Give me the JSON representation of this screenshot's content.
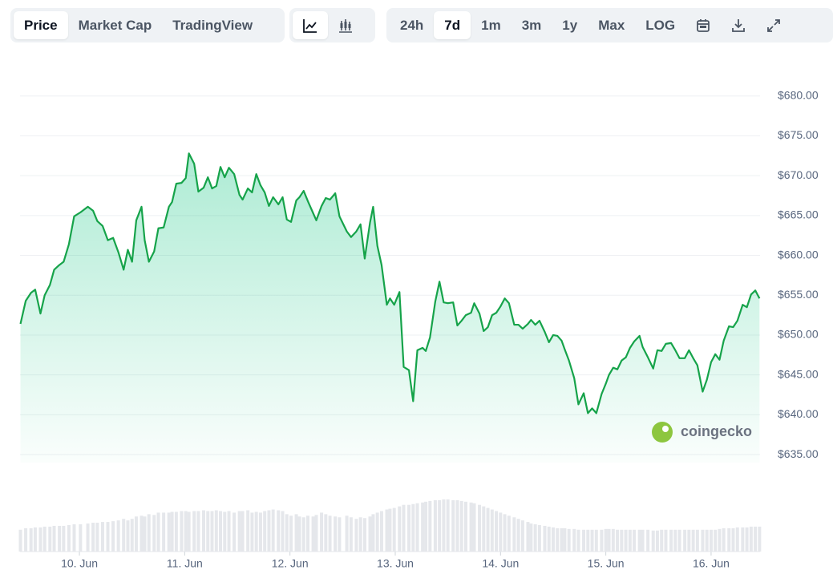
{
  "toolbar": {
    "tabs": [
      "Price",
      "Market Cap",
      "TradingView"
    ],
    "ranges": [
      "24h",
      "7d",
      "1m",
      "3m",
      "1y",
      "Max",
      "LOG"
    ]
  },
  "watermark": "coingecko",
  "chart_data": {
    "type": "line",
    "x": [
      9.44,
      9.49,
      9.54,
      9.58,
      9.63,
      9.67,
      9.72,
      9.76,
      9.81,
      9.85,
      9.9,
      9.95,
      10.01,
      10.08,
      10.13,
      10.17,
      10.22,
      10.27,
      10.32,
      10.37,
      10.42,
      10.46,
      10.5,
      10.54,
      10.59,
      10.62,
      10.66,
      10.71,
      10.75,
      10.8,
      10.85,
      10.88,
      10.92,
      10.97,
      11.01,
      11.04,
      11.09,
      11.13,
      11.18,
      11.22,
      11.26,
      11.3,
      11.34,
      11.38,
      11.42,
      11.47,
      11.52,
      11.55,
      11.6,
      11.64,
      11.68,
      11.72,
      11.76,
      11.8,
      11.84,
      11.89,
      11.93,
      11.97,
      12.01,
      12.06,
      12.09,
      12.13,
      12.17,
      12.22,
      12.25,
      12.3,
      12.34,
      12.38,
      12.43,
      12.47,
      12.54,
      12.58,
      12.63,
      12.67,
      12.71,
      12.76,
      12.79,
      12.83,
      12.87,
      12.92,
      12.95,
      12.99,
      13.04,
      13.08,
      13.13,
      13.17,
      13.21,
      13.26,
      13.29,
      13.33,
      13.38,
      13.42,
      13.46,
      13.5,
      13.55,
      13.59,
      13.63,
      13.67,
      13.72,
      13.75,
      13.8,
      13.84,
      13.88,
      13.92,
      13.96,
      14.0,
      14.04,
      14.08,
      14.13,
      14.17,
      14.21,
      14.26,
      14.29,
      14.33,
      14.37,
      14.42,
      14.46,
      14.5,
      14.54,
      14.58,
      14.61,
      14.65,
      14.7,
      14.74,
      14.79,
      14.83,
      14.87,
      14.91,
      14.96,
      15.0,
      15.03,
      15.07,
      15.11,
      15.15,
      15.19,
      15.23,
      15.27,
      15.32,
      15.35,
      15.4,
      15.45,
      15.49,
      15.53,
      15.57,
      15.62,
      15.66,
      15.7,
      15.75,
      15.79,
      15.83,
      15.87,
      15.92,
      15.96,
      16.0,
      16.04,
      16.08,
      16.12,
      16.17,
      16.21,
      16.25,
      16.3,
      16.34,
      16.38,
      16.42,
      16.46
    ],
    "series": [
      {
        "color": "#16a34a",
        "values": [
          651.4,
          654.3,
          655.3,
          655.7,
          652.7,
          655.0,
          656.3,
          658.2,
          658.8,
          659.2,
          661.4,
          664.9,
          665.4,
          666.1,
          665.6,
          664.3,
          663.7,
          661.9,
          662.2,
          660.4,
          658.2,
          660.7,
          659.2,
          664.4,
          666.1,
          661.9,
          659.2,
          660.5,
          663.4,
          663.5,
          666.1,
          666.7,
          669.0,
          669.1,
          669.7,
          672.8,
          671.5,
          668.0,
          668.5,
          669.8,
          668.4,
          668.7,
          671.1,
          669.8,
          671.0,
          670.2,
          667.6,
          667.0,
          668.4,
          667.9,
          670.2,
          668.8,
          667.9,
          666.2,
          667.3,
          666.4,
          667.3,
          664.5,
          664.2,
          666.9,
          667.3,
          668.1,
          666.8,
          665.3,
          664.4,
          666.2,
          667.2,
          667.0,
          667.8,
          664.9,
          663.0,
          662.3,
          663.0,
          663.9,
          659.6,
          664.1,
          666.1,
          661.2,
          658.8,
          653.8,
          654.6,
          653.8,
          655.4,
          646.0,
          645.6,
          641.7,
          648.1,
          648.4,
          648.0,
          649.7,
          654.2,
          656.7,
          654.1,
          654.0,
          654.1,
          651.2,
          651.8,
          652.5,
          652.8,
          654.0,
          652.7,
          650.5,
          651.0,
          652.5,
          652.8,
          653.6,
          654.6,
          654.0,
          651.3,
          651.3,
          650.8,
          651.4,
          651.9,
          651.3,
          651.8,
          650.4,
          649.1,
          650.0,
          649.9,
          649.3,
          648.2,
          646.8,
          644.6,
          641.3,
          642.7,
          640.2,
          640.8,
          640.2,
          642.6,
          643.9,
          645.0,
          645.9,
          645.7,
          646.8,
          647.2,
          648.4,
          649.2,
          649.9,
          648.5,
          647.2,
          645.8,
          648.1,
          648.0,
          648.9,
          649.0,
          648.1,
          647.1,
          647.1,
          648.1,
          647.1,
          646.2,
          642.9,
          644.4,
          646.6,
          647.6,
          646.9,
          649.3,
          651.1,
          651.0,
          651.8,
          653.8,
          653.5,
          655.1,
          655.6,
          654.6
        ]
      },
      {
        "type": "bar",
        "axis": "y2",
        "color": "#e5e7eb",
        "values": [
          28,
          30,
          30,
          31,
          31,
          32,
          32,
          33,
          33,
          33,
          34,
          35,
          35,
          36,
          37,
          37,
          38,
          38,
          39,
          40,
          42,
          40,
          42,
          45,
          46,
          45,
          48,
          47,
          50,
          50,
          50,
          51,
          51,
          52,
          52,
          51,
          52,
          52,
          53,
          52,
          52,
          53,
          52,
          51,
          52,
          50,
          52,
          52,
          53,
          50,
          51,
          50,
          52,
          53,
          54,
          53,
          52,
          48,
          46,
          48,
          45,
          44,
          46,
          45,
          47,
          50,
          48,
          46,
          45,
          44,
          46,
          44,
          42,
          44,
          43,
          45,
          48,
          50,
          52,
          54,
          55,
          56,
          58,
          60,
          60,
          61,
          62,
          63,
          64,
          65,
          66,
          66,
          67,
          67,
          66,
          66,
          65,
          64,
          63,
          62,
          60,
          58,
          56,
          54,
          52,
          50,
          48,
          46,
          44,
          42,
          40,
          38,
          36,
          35,
          34,
          33,
          32,
          31,
          30,
          30,
          30,
          29,
          29,
          28,
          28,
          28,
          28,
          28,
          28,
          29,
          29,
          29,
          28,
          28,
          28,
          28,
          28,
          28,
          28,
          28,
          27,
          27,
          28,
          28,
          28,
          28,
          28,
          28,
          28,
          28,
          28,
          28,
          28,
          28,
          28,
          29,
          30,
          30,
          30,
          31,
          31,
          31,
          32,
          32,
          32
        ]
      }
    ],
    "xlim": [
      9.436,
      16.465
    ],
    "xticks": [
      {
        "value": 10,
        "label": "10. Jun"
      },
      {
        "value": 11,
        "label": "11. Jun"
      },
      {
        "value": 12,
        "label": "12. Jun"
      },
      {
        "value": 13,
        "label": "13. Jun"
      },
      {
        "value": 14,
        "label": "14. Jun"
      },
      {
        "value": 15,
        "label": "15. Jun"
      },
      {
        "value": 16,
        "label": "16. Jun"
      }
    ],
    "ylim": [
      634,
      684
    ],
    "yticks": [
      {
        "value": 635,
        "label": "$635.00"
      },
      {
        "value": 640,
        "label": "$640.00"
      },
      {
        "value": 645,
        "label": "$645.00"
      },
      {
        "value": 650,
        "label": "$650.00"
      },
      {
        "value": 655,
        "label": "$655.00"
      },
      {
        "value": 660,
        "label": "$660.00"
      },
      {
        "value": 665,
        "label": "$665.00"
      },
      {
        "value": 670,
        "label": "$670.00"
      },
      {
        "value": 675,
        "label": "$675.00"
      },
      {
        "value": 680,
        "label": "$680.00"
      }
    ],
    "y2lim": [
      0,
      70
    ],
    "grid": true
  }
}
